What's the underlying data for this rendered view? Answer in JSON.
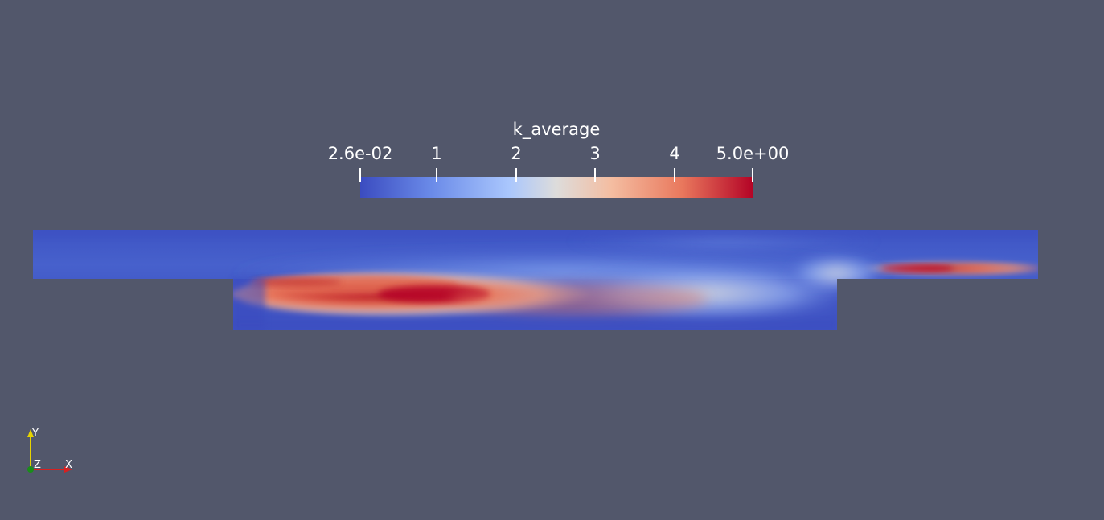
{
  "colorbar": {
    "title": "k_average",
    "min_label": "2.6e-02",
    "max_label": "5.0e+00",
    "ticks": [
      "1",
      "2",
      "3",
      "4"
    ],
    "range": [
      0.026,
      5.0
    ],
    "colormap": "Cool to Warm",
    "colors": {
      "low": "#3b4cc0",
      "mid": "#dddcdb",
      "high": "#b40426"
    }
  },
  "viewport": {
    "background": "#52576b"
  },
  "orientation_axes": {
    "x_label": "X",
    "y_label": "Y",
    "z_label": "Z",
    "x_color": "#d62020",
    "y_color": "#e6d300",
    "z_color": "#1a8c1a"
  }
}
